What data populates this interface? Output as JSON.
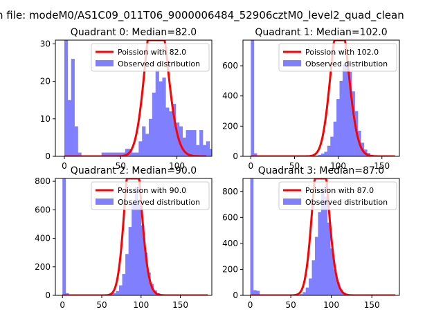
{
  "figure": {
    "suptitle": "n file: modeM0/AS1C09_011T06_9000006484_52906cztM0_level2_quad_clean"
  },
  "colors": {
    "hist": "#8080ff",
    "poisson": "#ff0000",
    "axis": "#000000",
    "background": "#ffffff"
  },
  "chart_data": [
    {
      "type": "bar",
      "title": "Quadrant 0: Median=82.0",
      "median": 82.0,
      "xlim": [
        -8,
        131
      ],
      "ylim": [
        0,
        31
      ],
      "xticks": [
        0,
        50,
        100
      ],
      "yticks": [
        0,
        10,
        20,
        30
      ],
      "bin_width": 3,
      "series": [
        {
          "name": "Observed distribution",
          "bins_start": 0,
          "values": [
            31,
            15,
            26,
            8,
            1,
            0,
            0,
            0,
            0,
            0,
            0,
            1,
            1,
            1,
            1,
            1,
            1,
            1,
            2,
            2,
            1,
            1,
            4,
            8,
            6,
            10,
            17,
            23,
            20,
            21,
            13,
            12,
            14,
            9,
            8,
            5,
            7,
            7,
            7,
            3,
            7,
            3,
            4,
            2,
            2
          ]
        },
        {
          "name": "Poission with 82.0",
          "kind": "poisson_curve",
          "lambda": 82.0,
          "total": 340,
          "bin_width": 3
        }
      ],
      "legend": {
        "position": "top-right",
        "entries": [
          "Poission with 82.0",
          "Observed distribution"
        ]
      }
    },
    {
      "type": "bar",
      "title": "Quadrant 1: Median=102.0",
      "median": 102.0,
      "xlim": [
        -9,
        170
      ],
      "ylim": [
        0,
        770
      ],
      "xticks": [
        0,
        50,
        100,
        150
      ],
      "yticks": [
        0,
        200,
        400,
        600
      ],
      "bin_width": 3.5,
      "series": [
        {
          "name": "Observed distribution",
          "bins_start": 0,
          "values": [
            770,
            20,
            0,
            0,
            0,
            0,
            0,
            0,
            0,
            0,
            0,
            0,
            0,
            0,
            0,
            0,
            0,
            0,
            0,
            0,
            3,
            5,
            10,
            18,
            30,
            70,
            130,
            230,
            380,
            500,
            610,
            630,
            560,
            430,
            300,
            170,
            90,
            45,
            22,
            10,
            5,
            3,
            2,
            1,
            0,
            0,
            0
          ]
        },
        {
          "name": "Poission with 102.0",
          "kind": "poisson_curve",
          "lambda": 102.0,
          "total": 6750,
          "bin_width": 3.5
        }
      ],
      "legend": {
        "position": "top-right",
        "entries": [
          "Poission with 102.0",
          "Observed distribution"
        ]
      }
    },
    {
      "type": "bar",
      "title": "Quadrant 2: Median=90.0",
      "median": 90.0,
      "xlim": [
        -9,
        190
      ],
      "ylim": [
        0,
        820
      ],
      "xticks": [
        0,
        50,
        100,
        150
      ],
      "yticks": [
        0,
        200,
        400,
        600,
        800
      ],
      "bin_width": 4,
      "series": [
        {
          "name": "Observed distribution",
          "bins_start": 0,
          "values": [
            820,
            15,
            0,
            0,
            0,
            0,
            0,
            0,
            0,
            0,
            0,
            0,
            0,
            0,
            3,
            8,
            15,
            30,
            70,
            150,
            290,
            480,
            650,
            760,
            660,
            490,
            300,
            160,
            80,
            35,
            15,
            6,
            3,
            2,
            1,
            0,
            0,
            0,
            0,
            0,
            0,
            0,
            0,
            0,
            0,
            0
          ]
        },
        {
          "name": "Poission with 90.0",
          "kind": "poisson_curve",
          "lambda": 90.0,
          "total": 7050,
          "bin_width": 4
        }
      ],
      "legend": {
        "position": "top-right",
        "entries": [
          "Poission with 90.0",
          "Observed distribution"
        ]
      }
    },
    {
      "type": "bar",
      "title": "Quadrant 3: Median=87.0",
      "median": 87.0,
      "xlim": [
        -9,
        184
      ],
      "ylim": [
        0,
        900
      ],
      "xticks": [
        0,
        50,
        100,
        150
      ],
      "yticks": [
        0,
        200,
        400,
        600,
        800
      ],
      "bin_width": 3.8,
      "series": [
        {
          "name": "Observed distribution",
          "bins_start": 0,
          "values": [
            900,
            40,
            35,
            0,
            0,
            0,
            0,
            0,
            0,
            0,
            0,
            0,
            0,
            0,
            0,
            3,
            10,
            25,
            60,
            130,
            270,
            450,
            640,
            820,
            760,
            560,
            360,
            200,
            100,
            45,
            20,
            8,
            3,
            1,
            0,
            0,
            0,
            0,
            0,
            0,
            0,
            0,
            0,
            0,
            0
          ]
        },
        {
          "name": "Poission with 87.0",
          "kind": "poisson_curve",
          "lambda": 87.0,
          "total": 7500,
          "bin_width": 3.8
        }
      ],
      "legend": {
        "position": "top-right",
        "entries": [
          "Poission with 87.0",
          "Observed distribution"
        ]
      }
    }
  ]
}
